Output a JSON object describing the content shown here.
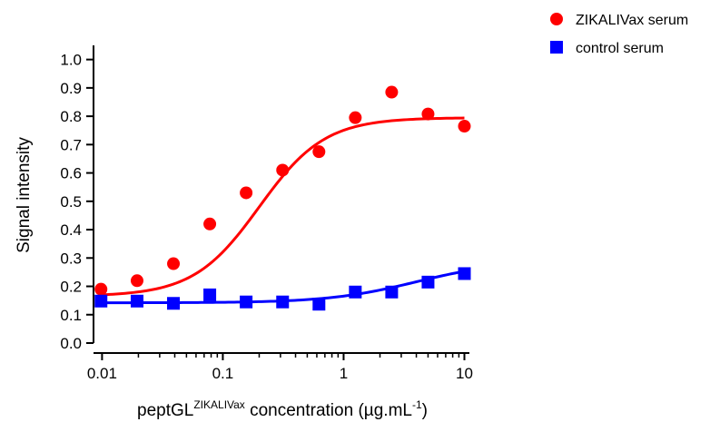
{
  "chart_data": {
    "type": "scatter",
    "xscale": "log",
    "xlim": [
      0.0085,
      11
    ],
    "ylim": [
      0,
      1.05
    ],
    "ylabel": "Signal intensity",
    "xlabel": {
      "prefix": "peptGL",
      "superscript": "ZIKALIVax",
      "middle": " concentration (µg.mL",
      "unit_superscript": "-1",
      "suffix": ")"
    },
    "x_ticks": [
      {
        "value": 0.01,
        "label": "0.01"
      },
      {
        "value": 0.1,
        "label": "0.1"
      },
      {
        "value": 1,
        "label": "1"
      },
      {
        "value": 10,
        "label": "10"
      }
    ],
    "y_ticks": [
      {
        "value": 0.0,
        "label": "0.0"
      },
      {
        "value": 0.1,
        "label": "0.1"
      },
      {
        "value": 0.2,
        "label": "0.2"
      },
      {
        "value": 0.3,
        "label": "0.3"
      },
      {
        "value": 0.4,
        "label": "0.4"
      },
      {
        "value": 0.5,
        "label": "0.5"
      },
      {
        "value": 0.6,
        "label": "0.6"
      },
      {
        "value": 0.7,
        "label": "0.7"
      },
      {
        "value": 0.8,
        "label": "0.8"
      },
      {
        "value": 0.9,
        "label": "0.9"
      },
      {
        "value": 1.0,
        "label": "1.0"
      }
    ],
    "grid": false,
    "legend_position": "top-right",
    "series": [
      {
        "name": "ZIKALIVax serum",
        "color": "#ff0000",
        "marker": "circle",
        "points": [
          {
            "x": 0.0098,
            "y": 0.19
          },
          {
            "x": 0.0195,
            "y": 0.22
          },
          {
            "x": 0.039,
            "y": 0.28
          },
          {
            "x": 0.078,
            "y": 0.42
          },
          {
            "x": 0.156,
            "y": 0.53
          },
          {
            "x": 0.3125,
            "y": 0.61
          },
          {
            "x": 0.625,
            "y": 0.675
          },
          {
            "x": 1.25,
            "y": 0.795
          },
          {
            "x": 2.5,
            "y": 0.885
          },
          {
            "x": 5,
            "y": 0.808
          },
          {
            "x": 10,
            "y": 0.765
          }
        ],
        "fit": {
          "bottom": 0.165,
          "top": 0.795,
          "ec50": 0.2,
          "hill": 1.6
        }
      },
      {
        "name": "control serum",
        "color": "#0000ff",
        "marker": "square",
        "points": [
          {
            "x": 0.0098,
            "y": 0.148
          },
          {
            "x": 0.0195,
            "y": 0.148
          },
          {
            "x": 0.039,
            "y": 0.14
          },
          {
            "x": 0.078,
            "y": 0.17
          },
          {
            "x": 0.156,
            "y": 0.145
          },
          {
            "x": 0.3125,
            "y": 0.145
          },
          {
            "x": 0.625,
            "y": 0.137
          },
          {
            "x": 1.25,
            "y": 0.18
          },
          {
            "x": 2.5,
            "y": 0.18
          },
          {
            "x": 5,
            "y": 0.215
          },
          {
            "x": 10,
            "y": 0.245
          }
        ],
        "fit": {
          "bottom": 0.142,
          "top": 0.29,
          "ec50": 4.0,
          "hill": 1.2
        }
      }
    ]
  }
}
